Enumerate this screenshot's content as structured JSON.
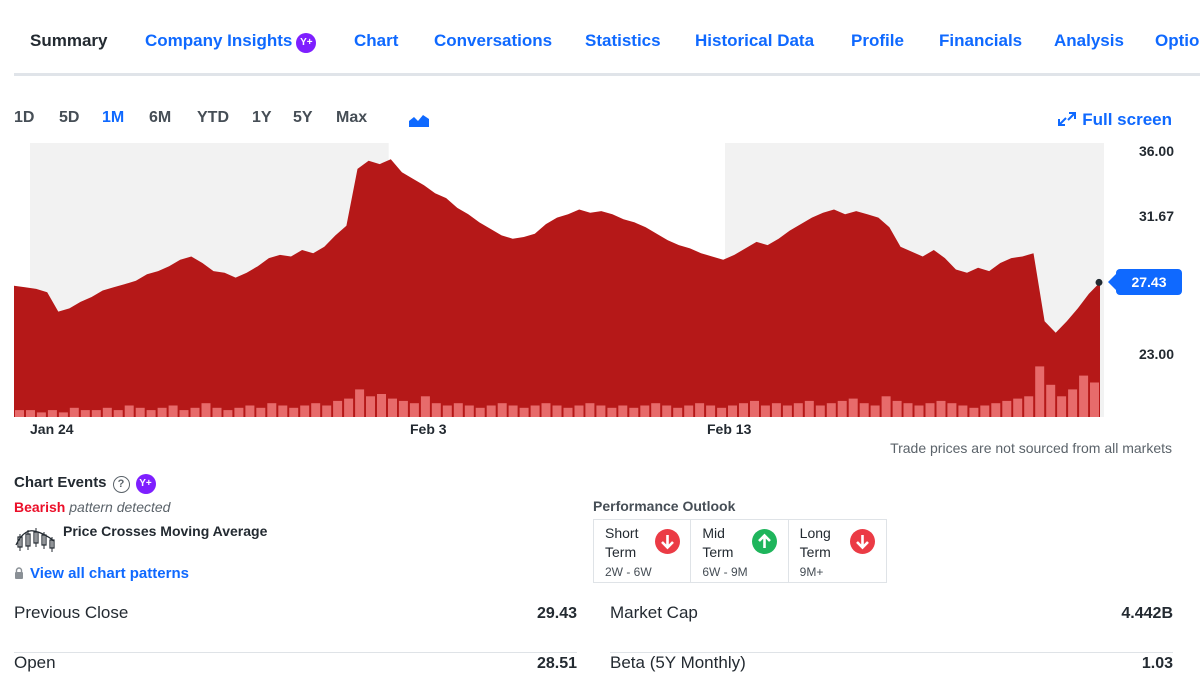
{
  "tabs": [
    {
      "label": "Summary",
      "active": true
    },
    {
      "label": "Company Insights",
      "badge": "Y+"
    },
    {
      "label": "Chart"
    },
    {
      "label": "Conversations"
    },
    {
      "label": "Statistics"
    },
    {
      "label": "Historical Data"
    },
    {
      "label": "Profile"
    },
    {
      "label": "Financials"
    },
    {
      "label": "Analysis"
    },
    {
      "label": "Optio"
    }
  ],
  "ranges": [
    {
      "label": "1D"
    },
    {
      "label": "5D"
    },
    {
      "label": "1M",
      "active": true
    },
    {
      "label": "6M"
    },
    {
      "label": "YTD"
    },
    {
      "label": "1Y"
    },
    {
      "label": "5Y"
    },
    {
      "label": "Max"
    }
  ],
  "toolbar": {
    "fullscreen_label": "Full screen",
    "chart_type_icon": "mountain-chart-icon"
  },
  "chart_data": {
    "type": "area",
    "y_ticks": [
      "36.00",
      "31.67",
      "23.00"
    ],
    "ylim": [
      19.1,
      36.0
    ],
    "x_ticks": [
      "Jan 24",
      "Feb 3",
      "Feb 13"
    ],
    "current_price": "27.43",
    "fill_color": "#b51818",
    "price": [
      27.2,
      27.1,
      27.0,
      26.8,
      25.6,
      25.8,
      26.2,
      26.5,
      26.9,
      27.1,
      27.3,
      27.5,
      27.9,
      28.1,
      28.4,
      28.8,
      29.0,
      28.6,
      28.1,
      28.0,
      27.7,
      28.0,
      28.4,
      28.9,
      29.1,
      29.0,
      29.4,
      29.2,
      29.6,
      30.3,
      30.9,
      34.4,
      34.9,
      34.7,
      35.0,
      34.2,
      33.8,
      33.4,
      32.9,
      32.6,
      32.0,
      31.6,
      31.1,
      30.7,
      30.3,
      30.1,
      30.2,
      30.4,
      31.0,
      31.4,
      31.6,
      31.9,
      31.7,
      31.8,
      31.6,
      31.3,
      31.1,
      30.8,
      30.4,
      30.0,
      29.7,
      29.5,
      29.2,
      29.0,
      28.8,
      29.1,
      29.5,
      29.9,
      29.7,
      30.1,
      30.6,
      31.0,
      31.4,
      31.7,
      31.9,
      31.6,
      31.8,
      31.6,
      31.4,
      30.8,
      29.6,
      29.3,
      29.0,
      29.4,
      28.9,
      28.2,
      28.0,
      28.3,
      28.1,
      28.6,
      28.9,
      29.0,
      29.2,
      25.0,
      24.3,
      25.0,
      25.8,
      26.7,
      27.4
    ],
    "volume": [
      3,
      3,
      2,
      3,
      2,
      4,
      3,
      3,
      4,
      3,
      5,
      4,
      3,
      4,
      5,
      3,
      4,
      6,
      4,
      3,
      4,
      5,
      4,
      6,
      5,
      4,
      5,
      6,
      5,
      7,
      8,
      12,
      9,
      10,
      8,
      7,
      6,
      9,
      6,
      5,
      6,
      5,
      4,
      5,
      6,
      5,
      4,
      5,
      6,
      5,
      4,
      5,
      6,
      5,
      4,
      5,
      4,
      5,
      6,
      5,
      4,
      5,
      6,
      5,
      4,
      5,
      6,
      7,
      5,
      6,
      5,
      6,
      7,
      5,
      6,
      7,
      8,
      6,
      5,
      9,
      7,
      6,
      5,
      6,
      7,
      6,
      5,
      4,
      5,
      6,
      7,
      8,
      9,
      22,
      14,
      9,
      12,
      18,
      15
    ],
    "shaded_bands": [
      [
        0,
        0.345
      ],
      [
        0.64,
        1.0
      ]
    ]
  },
  "disclaimer": "Trade prices are not sourced from all markets",
  "chart_events": {
    "title": "Chart Events",
    "badge": "Y+",
    "sentiment": "Bearish",
    "sentiment_suffix": "pattern detected",
    "pattern": "Price Crosses Moving Average",
    "view_all": "View all chart patterns"
  },
  "performance": {
    "title": "Performance Outlook",
    "items": [
      {
        "term_line1": "Short",
        "term_line2": "Term",
        "range": "2W - 6W",
        "direction": "down"
      },
      {
        "term_line1": "Mid",
        "term_line2": "Term",
        "range": "6W - 9M",
        "direction": "up"
      },
      {
        "term_line1": "Long",
        "term_line2": "Term",
        "range": "9M+",
        "direction": "down"
      }
    ]
  },
  "stats_left": [
    {
      "label": "Previous Close",
      "value": "29.43"
    },
    {
      "label": "Open",
      "value": "28.51"
    }
  ],
  "stats_right": [
    {
      "label": "Market Cap",
      "value": "4.442B"
    },
    {
      "label": "Beta (5Y Monthly)",
      "value": "1.03"
    }
  ]
}
